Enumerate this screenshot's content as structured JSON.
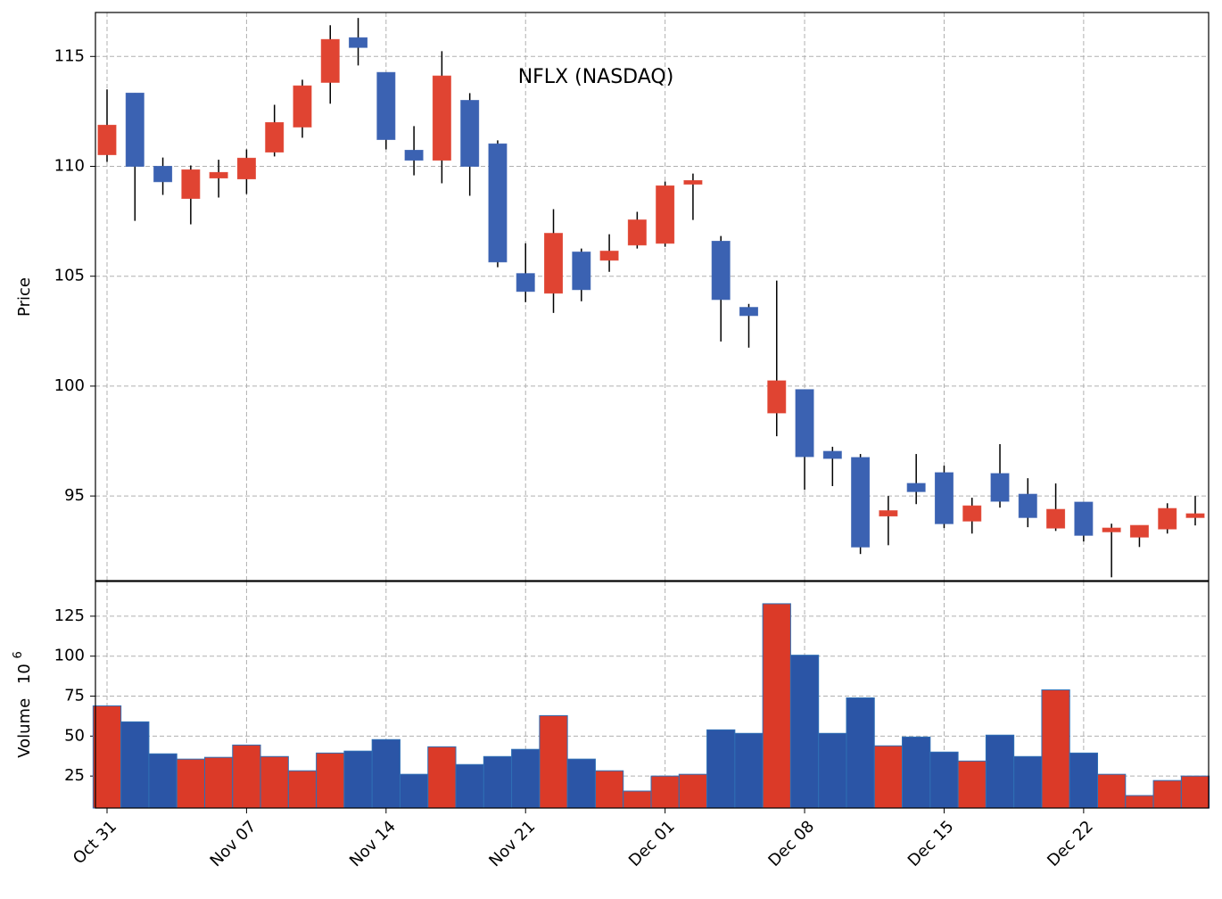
{
  "chart_data": [
    {
      "type": "candlestick",
      "title": "NFLX (NASDAQ)",
      "ylabel": "Price",
      "categories": [
        "Oct 31",
        null,
        null,
        null,
        null,
        "Nov 07",
        null,
        null,
        null,
        null,
        "Nov 14",
        null,
        null,
        null,
        null,
        "Nov 21",
        null,
        null,
        null,
        null,
        "Dec 01",
        null,
        null,
        null,
        null,
        "Dec 08",
        null,
        null,
        null,
        null,
        "Dec 15",
        null,
        null,
        null,
        null,
        "Dec 22",
        null,
        null,
        null,
        null
      ],
      "open": [
        110.53,
        113.33,
        110.0,
        108.54,
        109.47,
        109.43,
        110.65,
        111.79,
        113.82,
        115.85,
        114.27,
        110.73,
        110.28,
        113.0,
        111.02,
        105.12,
        104.23,
        106.1,
        105.73,
        106.42,
        106.5,
        109.19,
        106.59,
        103.58,
        98.78,
        99.84,
        97.03,
        96.75,
        94.09,
        95.57,
        96.06,
        93.86,
        96.02,
        95.08,
        93.54,
        94.72,
        93.37,
        93.13,
        93.5,
        94.02
      ],
      "high": [
        113.5,
        113.33,
        110.4,
        110.04,
        110.3,
        110.77,
        112.8,
        113.94,
        116.42,
        116.75,
        114.27,
        111.83,
        115.24,
        113.33,
        111.18,
        106.5,
        108.05,
        106.26,
        106.91,
        107.93,
        109.31,
        109.67,
        106.83,
        103.74,
        104.8,
        99.84,
        97.24,
        96.91,
        95.0,
        96.91,
        96.38,
        94.92,
        97.36,
        95.81,
        95.57,
        94.72,
        93.74,
        93.66,
        94.67,
        95.0
      ],
      "low": [
        110.2,
        107.52,
        108.7,
        107.36,
        108.58,
        108.74,
        110.45,
        111.3,
        112.85,
        114.59,
        110.77,
        109.59,
        109.23,
        108.66,
        105.41,
        103.82,
        103.33,
        103.86,
        105.2,
        106.26,
        106.34,
        107.56,
        102.03,
        101.75,
        97.72,
        95.28,
        95.45,
        92.36,
        92.76,
        94.63,
        93.54,
        93.29,
        94.47,
        93.58,
        93.41,
        92.93,
        91.3,
        92.68,
        93.29,
        93.66
      ],
      "close": [
        111.87,
        110.0,
        109.3,
        109.84,
        109.72,
        110.37,
        111.99,
        113.66,
        115.77,
        115.41,
        111.22,
        110.28,
        114.11,
        110.0,
        105.65,
        104.31,
        106.95,
        104.39,
        106.14,
        107.56,
        109.11,
        109.35,
        103.94,
        103.21,
        100.24,
        96.79,
        96.71,
        92.68,
        94.33,
        95.2,
        93.74,
        94.55,
        94.76,
        94.02,
        94.39,
        93.21,
        93.54,
        93.66,
        94.43,
        94.19
      ],
      "ylim": [
        91.15,
        117
      ],
      "yticks": [
        95,
        100,
        105,
        110,
        115
      ],
      "up_color": "#e04432",
      "down_color": "#3b62b2",
      "grid": true
    },
    {
      "type": "bar",
      "ylabel": "Volume",
      "scale_base": "10",
      "scale_exponent": "6",
      "values": [
        68.9,
        58.9,
        38.9,
        35.6,
        36.7,
        44.4,
        37.2,
        28.3,
        39.4,
        40.6,
        47.8,
        26.1,
        43.3,
        32.2,
        37.2,
        41.7,
        62.8,
        35.6,
        28.3,
        15.6,
        25,
        26.1,
        53.9,
        51.7,
        132.8,
        100.6,
        51.7,
        73.9,
        43.9,
        49.4,
        40,
        34.4,
        50.6,
        37.2,
        78.9,
        39.4,
        26.1,
        12.8,
        22.2,
        25
      ],
      "ylim": [
        5,
        146.7
      ],
      "yticks": [
        25,
        50,
        75,
        100,
        125
      ],
      "up_color": "#db3a28",
      "down_color": "#2b55a6",
      "grid": true
    }
  ]
}
